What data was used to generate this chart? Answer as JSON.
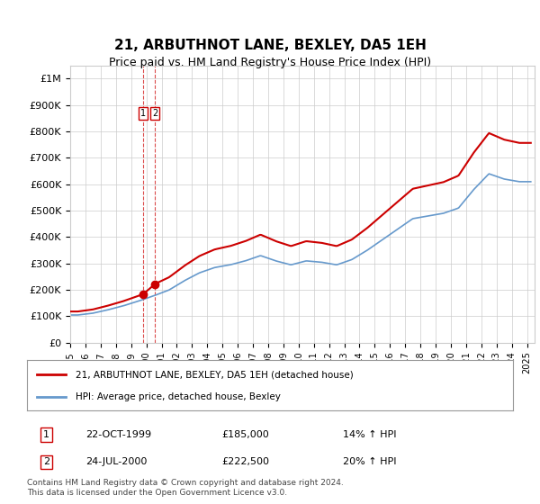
{
  "title": "21, ARBUTHNOT LANE, BEXLEY, DA5 1EH",
  "subtitle": "Price paid vs. HM Land Registry's House Price Index (HPI)",
  "ylabel_ticks": [
    "£0",
    "£100K",
    "£200K",
    "£300K",
    "£400K",
    "£500K",
    "£600K",
    "£700K",
    "£800K",
    "£900K",
    "£1M"
  ],
  "ytick_values": [
    0,
    100000,
    200000,
    300000,
    400000,
    500000,
    600000,
    700000,
    800000,
    900000,
    1000000
  ],
  "ylim": [
    0,
    1050000
  ],
  "xlim_start": 1995.0,
  "xlim_end": 2025.5,
  "sale_dates": [
    1999.81,
    2000.56
  ],
  "sale_prices": [
    185000,
    222500
  ],
  "sale_labels": [
    "1",
    "2"
  ],
  "legend_entries": [
    "21, ARBUTHNOT LANE, BEXLEY, DA5 1EH (detached house)",
    "HPI: Average price, detached house, Bexley"
  ],
  "table_rows": [
    [
      "1",
      "22-OCT-1999",
      "£185,000",
      "14% ↑ HPI"
    ],
    [
      "2",
      "24-JUL-2000",
      "£222,500",
      "20% ↑ HPI"
    ]
  ],
  "footer": "Contains HM Land Registry data © Crown copyright and database right 2024.\nThis data is licensed under the Open Government Licence v3.0.",
  "hpi_color": "#6699cc",
  "price_color": "#cc0000",
  "sale_marker_color": "#cc0000",
  "grid_color": "#cccccc",
  "background_color": "#ffffff",
  "xticklabels": [
    "1995",
    "1996",
    "1997",
    "1998",
    "1999",
    "2000",
    "2001",
    "2002",
    "2003",
    "2004",
    "2005",
    "2006",
    "2007",
    "2008",
    "2009",
    "2010",
    "2011",
    "2012",
    "2013",
    "2014",
    "2015",
    "2016",
    "2017",
    "2018",
    "2019",
    "2020",
    "2021",
    "2022",
    "2023",
    "2024",
    "2025"
  ]
}
